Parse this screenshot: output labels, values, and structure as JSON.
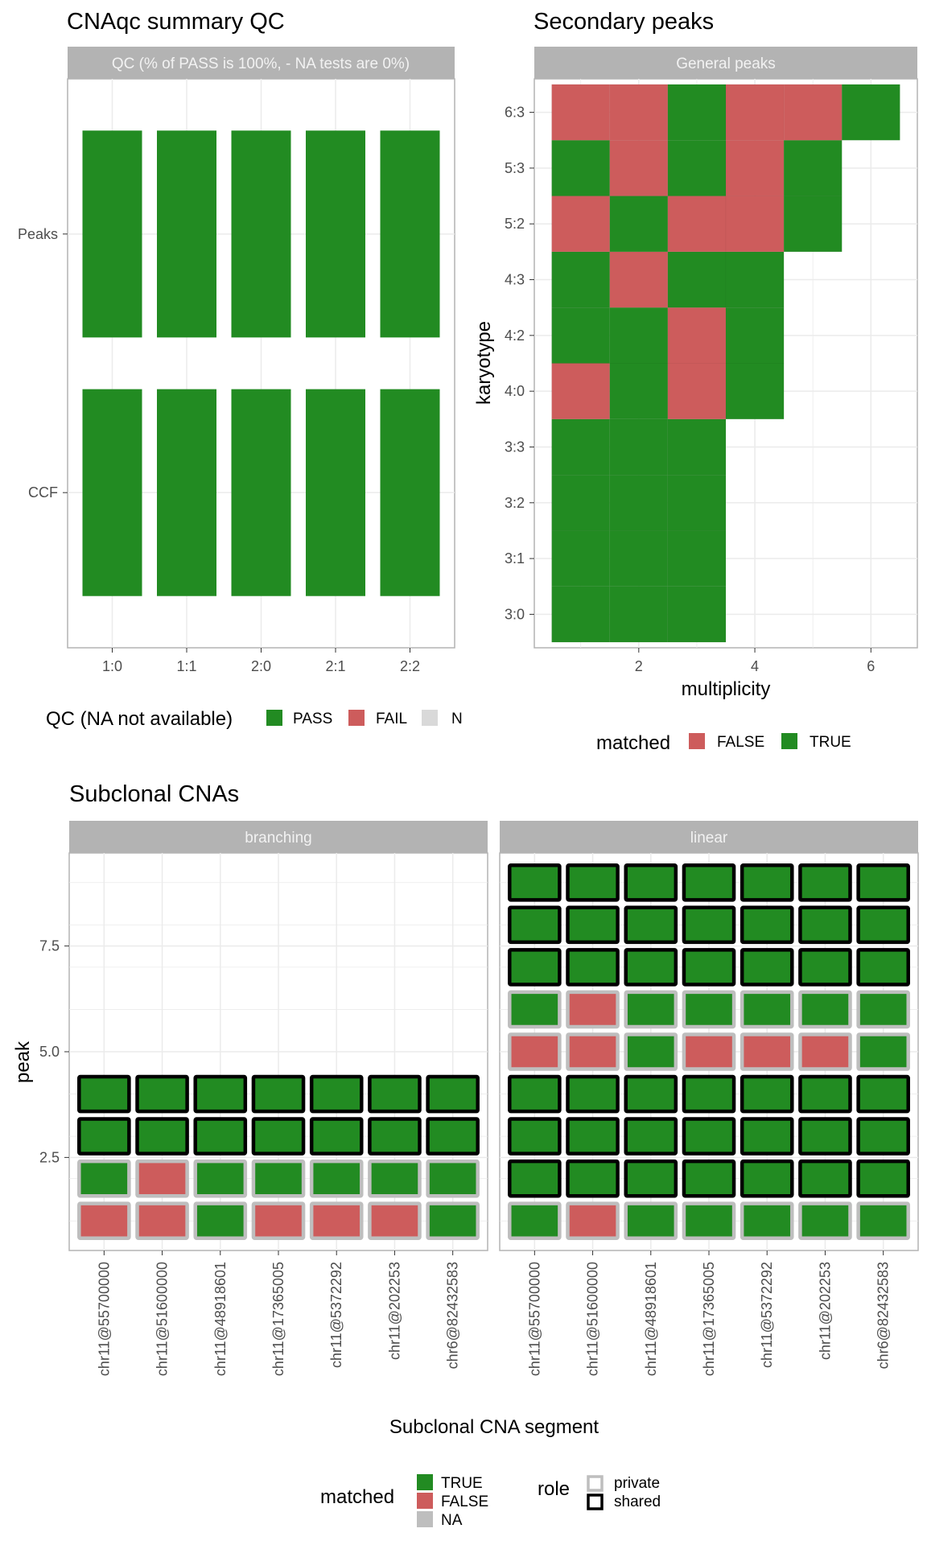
{
  "colors": {
    "pass": "#228B22",
    "fail": "#CD5C5C",
    "na": "#D9D9D9",
    "na_tile": "#BEBEBE",
    "strip": "#B3B3B3",
    "grid": "#EBEBEB",
    "panel_border": "#B3B3B3",
    "shared_border": "#000000",
    "private_border": "#BEBEBE"
  },
  "chart_data": [
    {
      "type": "heatmap",
      "title": "CNAqc summary QC",
      "strip": "QC (% of PASS is 100%, - NA tests are 0%)",
      "x": [
        "1:0",
        "1:1",
        "2:0",
        "2:1",
        "2:2"
      ],
      "y": [
        "Peaks",
        "CCF"
      ],
      "values": [
        [
          "PASS",
          "PASS",
          "PASS",
          "PASS",
          "PASS"
        ],
        [
          "PASS",
          "PASS",
          "PASS",
          "PASS",
          "PASS"
        ]
      ],
      "legend": {
        "title": "QC (NA not available)",
        "position": "bottom",
        "entries": [
          {
            "label": "PASS",
            "color": "pass"
          },
          {
            "label": "FAIL",
            "color": "fail"
          },
          {
            "label": "N",
            "color": "na"
          }
        ]
      }
    },
    {
      "type": "heatmap",
      "title": "Secondary peaks",
      "strip": "General peaks",
      "xlabel": "multiplicity",
      "ylabel": "karyotype",
      "xlim": [
        0.5,
        6.5
      ],
      "xticks": [
        2,
        4,
        6
      ],
      "y": [
        "3:0",
        "3:1",
        "3:2",
        "3:3",
        "4:0",
        "4:2",
        "4:3",
        "5:2",
        "5:3",
        "6:3"
      ],
      "rows": {
        "3:0": [
          true,
          true,
          true
        ],
        "3:1": [
          true,
          true,
          true
        ],
        "3:2": [
          true,
          true,
          true
        ],
        "3:3": [
          true,
          true,
          true
        ],
        "4:0": [
          false,
          true,
          false,
          true
        ],
        "4:2": [
          true,
          true,
          false,
          true
        ],
        "4:3": [
          true,
          false,
          true,
          true
        ],
        "5:2": [
          false,
          true,
          false,
          false,
          true
        ],
        "5:3": [
          true,
          false,
          true,
          false,
          true
        ],
        "6:3": [
          false,
          false,
          true,
          false,
          false,
          true
        ]
      },
      "legend": {
        "title": "matched",
        "position": "bottom",
        "entries": [
          {
            "label": "FALSE",
            "color": "fail"
          },
          {
            "label": "TRUE",
            "color": "pass"
          }
        ]
      }
    },
    {
      "type": "heatmap",
      "title": "Subclonal CNAs",
      "xlabel": "Subclonal CNA segment",
      "ylabel": "peak",
      "yticks": [
        2.5,
        5.0,
        7.5
      ],
      "segments": [
        "chr11@55700000",
        "chr11@51600000",
        "chr11@48918601",
        "chr11@17365005",
        "chr11@5372292",
        "chr11@202253",
        "chr6@82432583"
      ],
      "facets": [
        {
          "name": "branching",
          "rows": [
            {
              "role": "private",
              "matched": [
                false,
                false,
                true,
                false,
                false,
                false,
                true
              ]
            },
            {
              "role": "private",
              "matched": [
                true,
                false,
                true,
                true,
                true,
                true,
                true
              ]
            },
            {
              "role": "shared",
              "matched": [
                true,
                true,
                true,
                true,
                true,
                true,
                true
              ]
            },
            {
              "role": "shared",
              "matched": [
                true,
                true,
                true,
                true,
                true,
                true,
                true
              ]
            }
          ]
        },
        {
          "name": "linear",
          "rows": [
            {
              "role": "private",
              "matched": [
                true,
                false,
                true,
                true,
                true,
                true,
                true
              ]
            },
            {
              "role": "shared",
              "matched": [
                true,
                true,
                true,
                true,
                true,
                true,
                true
              ]
            },
            {
              "role": "shared",
              "matched": [
                true,
                true,
                true,
                true,
                true,
                true,
                true
              ]
            },
            {
              "role": "shared",
              "matched": [
                true,
                true,
                true,
                true,
                true,
                true,
                true
              ]
            },
            {
              "role": "private",
              "matched": [
                false,
                false,
                true,
                false,
                false,
                false,
                true
              ]
            },
            {
              "role": "private",
              "matched": [
                true,
                false,
                true,
                true,
                true,
                true,
                true
              ]
            },
            {
              "role": "shared",
              "matched": [
                true,
                true,
                true,
                true,
                true,
                true,
                true
              ]
            },
            {
              "role": "shared",
              "matched": [
                true,
                true,
                true,
                true,
                true,
                true,
                true
              ]
            },
            {
              "role": "shared",
              "matched": [
                true,
                true,
                true,
                true,
                true,
                true,
                true
              ]
            }
          ]
        }
      ],
      "legend_matched": {
        "title": "matched",
        "entries": [
          {
            "label": "TRUE",
            "color": "pass"
          },
          {
            "label": "FALSE",
            "color": "fail"
          },
          {
            "label": "NA",
            "color": "na_tile"
          }
        ]
      },
      "legend_role": {
        "title": "role",
        "entries": [
          {
            "label": "private",
            "color": "private_border"
          },
          {
            "label": "shared",
            "color": "shared_border"
          }
        ]
      }
    }
  ]
}
